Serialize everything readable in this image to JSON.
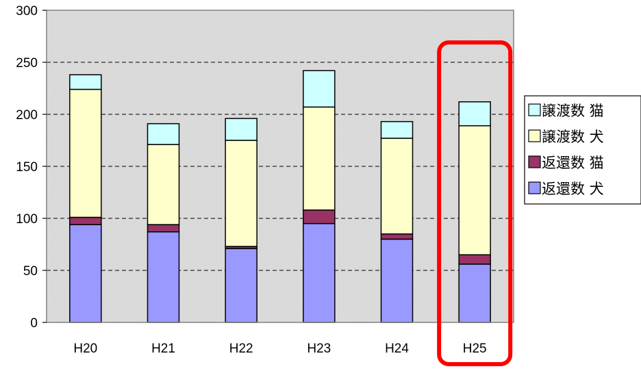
{
  "chart_data": {
    "type": "bar",
    "stacked": true,
    "categories": [
      "H20",
      "H21",
      "H22",
      "H23",
      "H24",
      "H25"
    ],
    "series": [
      {
        "name": "返還数 犬",
        "color": "#9999ff",
        "values": [
          94,
          87,
          71,
          95,
          80,
          56
        ]
      },
      {
        "name": "返還数 猫",
        "color": "#993366",
        "values": [
          7,
          7,
          2,
          13,
          5,
          9
        ]
      },
      {
        "name": "譲渡数 犬",
        "color": "#ffffcc",
        "values": [
          123,
          77,
          102,
          99,
          92,
          124
        ]
      },
      {
        "name": "譲渡数 猫",
        "color": "#ccffff",
        "values": [
          14,
          20,
          21,
          35,
          16,
          23
        ]
      }
    ],
    "yticks": [
      "0",
      "50",
      "100",
      "150",
      "200",
      "250",
      "300"
    ],
    "ylim": [
      0,
      300
    ],
    "grid": "horizontal-dashed",
    "legend_position": "right",
    "highlight": {
      "category": "H25",
      "color": "#ff0000"
    }
  }
}
